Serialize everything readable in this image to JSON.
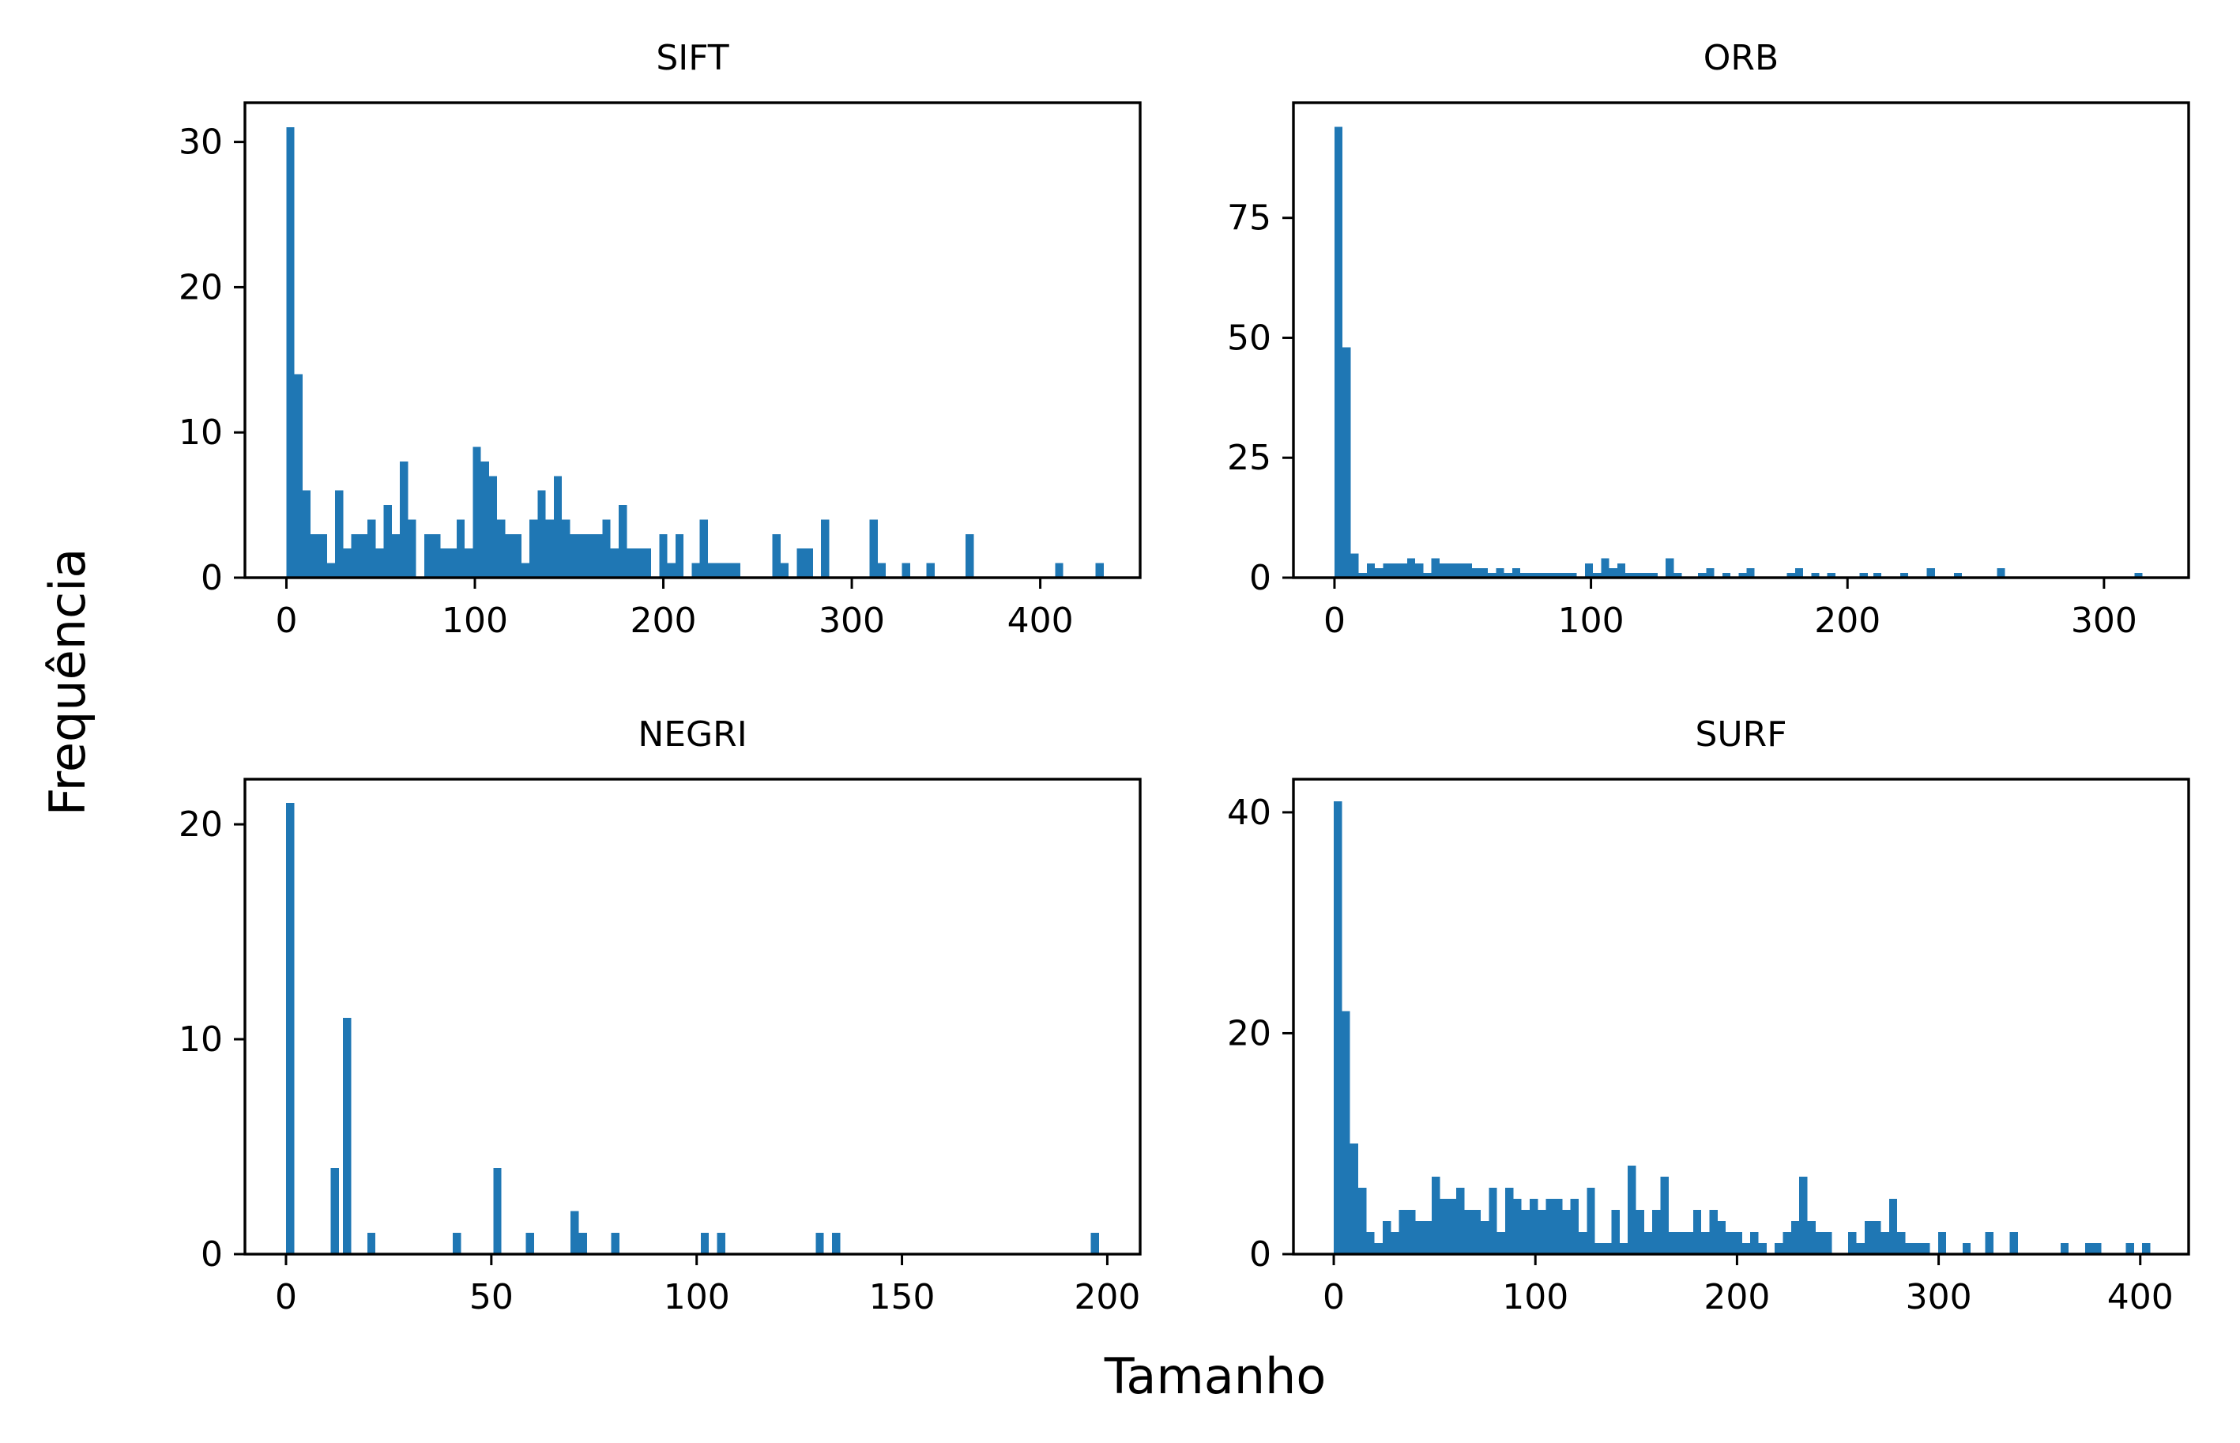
{
  "figure": {
    "xlabel": "Tamanho",
    "ylabel": "Frequência",
    "bar_color": "#1f77b4",
    "axis_color": "#000000"
  },
  "chart_data": [
    {
      "type": "bar",
      "title": "SIFT",
      "xlim": [
        -22,
        453
      ],
      "ylim": [
        0,
        32.7
      ],
      "xticks": [
        0,
        100,
        200,
        300,
        400
      ],
      "yticks": [
        0,
        10,
        20,
        30
      ],
      "bin_width": 4.3,
      "bins": [
        [
          0,
          31
        ],
        [
          4.3,
          14
        ],
        [
          8.6,
          6
        ],
        [
          12.9,
          3
        ],
        [
          17.2,
          3
        ],
        [
          21.5,
          1
        ],
        [
          25.8,
          6
        ],
        [
          30.1,
          2
        ],
        [
          34.4,
          3
        ],
        [
          38.7,
          3
        ],
        [
          43,
          4
        ],
        [
          47.3,
          2
        ],
        [
          51.6,
          5
        ],
        [
          55.9,
          3
        ],
        [
          60.2,
          8
        ],
        [
          64.5,
          4
        ],
        [
          73.1,
          3
        ],
        [
          77.4,
          3
        ],
        [
          81.7,
          2
        ],
        [
          86,
          2
        ],
        [
          90.3,
          4
        ],
        [
          94.6,
          2
        ],
        [
          98.9,
          9
        ],
        [
          103.2,
          8
        ],
        [
          107.5,
          7
        ],
        [
          111.8,
          4
        ],
        [
          116.1,
          3
        ],
        [
          120.4,
          3
        ],
        [
          124.7,
          1
        ],
        [
          129,
          4
        ],
        [
          133.3,
          6
        ],
        [
          137.6,
          4
        ],
        [
          141.9,
          7
        ],
        [
          146.2,
          4
        ],
        [
          150.5,
          3
        ],
        [
          154.8,
          3
        ],
        [
          159.1,
          3
        ],
        [
          163.4,
          3
        ],
        [
          167.7,
          4
        ],
        [
          172,
          2
        ],
        [
          176.3,
          5
        ],
        [
          180.6,
          2
        ],
        [
          184.9,
          2
        ],
        [
          189.2,
          2
        ],
        [
          197.8,
          3
        ],
        [
          202.1,
          1
        ],
        [
          206.4,
          3
        ],
        [
          215,
          1
        ],
        [
          219.3,
          4
        ],
        [
          223.6,
          1
        ],
        [
          227.9,
          1
        ],
        [
          232.2,
          1
        ],
        [
          236.5,
          1
        ],
        [
          257.9,
          3
        ],
        [
          262.2,
          1
        ],
        [
          270.8,
          2
        ],
        [
          275.1,
          2
        ],
        [
          283.7,
          4
        ],
        [
          309.5,
          4
        ],
        [
          313.8,
          1
        ],
        [
          326.7,
          1
        ],
        [
          339.6,
          1
        ],
        [
          360.4,
          3
        ],
        [
          407.9,
          1
        ],
        [
          429.4,
          1
        ]
      ]
    },
    {
      "type": "bar",
      "title": "ORB",
      "xlim": [
        -16,
        333
      ],
      "ylim": [
        0,
        99
      ],
      "xticks": [
        0,
        100,
        200,
        300
      ],
      "yticks": [
        0,
        25,
        50,
        75
      ],
      "bin_width": 3.15,
      "bins": [
        [
          0,
          94
        ],
        [
          3.15,
          48
        ],
        [
          6.3,
          5
        ],
        [
          9.45,
          1
        ],
        [
          12.6,
          3
        ],
        [
          15.75,
          2
        ],
        [
          18.9,
          3
        ],
        [
          22.05,
          3
        ],
        [
          25.2,
          3
        ],
        [
          28.35,
          4
        ],
        [
          31.5,
          3
        ],
        [
          34.65,
          1
        ],
        [
          37.8,
          4
        ],
        [
          40.95,
          3
        ],
        [
          44.1,
          3
        ],
        [
          47.25,
          3
        ],
        [
          50.4,
          3
        ],
        [
          53.55,
          2
        ],
        [
          56.7,
          2
        ],
        [
          59.85,
          1
        ],
        [
          63,
          2
        ],
        [
          66.15,
          1
        ],
        [
          69.3,
          2
        ],
        [
          72.45,
          1
        ],
        [
          75.6,
          1
        ],
        [
          78.75,
          1
        ],
        [
          81.9,
          1
        ],
        [
          85.05,
          1
        ],
        [
          88.2,
          1
        ],
        [
          91.35,
          1
        ],
        [
          97.65,
          3
        ],
        [
          100.8,
          1
        ],
        [
          103.95,
          4
        ],
        [
          107.1,
          2
        ],
        [
          110.25,
          3
        ],
        [
          113.4,
          1
        ],
        [
          116.55,
          1
        ],
        [
          119.7,
          1
        ],
        [
          122.85,
          1
        ],
        [
          129.15,
          4
        ],
        [
          132.3,
          1
        ],
        [
          141.75,
          1
        ],
        [
          144.9,
          2
        ],
        [
          151.2,
          1
        ],
        [
          157.5,
          1
        ],
        [
          160.65,
          2
        ],
        [
          176.4,
          1
        ],
        [
          179.55,
          2
        ],
        [
          185.85,
          1
        ],
        [
          192.15,
          1
        ],
        [
          204.75,
          1
        ],
        [
          210.05,
          1
        ],
        [
          220.5,
          1
        ],
        [
          230.95,
          2
        ],
        [
          241.5,
          1
        ],
        [
          258.3,
          2
        ],
        [
          311.85,
          1
        ]
      ]
    },
    {
      "type": "bar",
      "title": "NEGRI",
      "xlim": [
        -10,
        208
      ],
      "ylim": [
        0,
        22.1
      ],
      "xticks": [
        0,
        50,
        100,
        150,
        200
      ],
      "yticks": [
        0,
        10,
        20
      ],
      "bin_width": 1.98,
      "bins": [
        [
          0,
          21
        ],
        [
          10.9,
          4
        ],
        [
          13.9,
          11
        ],
        [
          19.8,
          1
        ],
        [
          40.6,
          1
        ],
        [
          50.5,
          4
        ],
        [
          58.4,
          1
        ],
        [
          69.3,
          2
        ],
        [
          71.3,
          1
        ],
        [
          79.2,
          1
        ],
        [
          101,
          1
        ],
        [
          105,
          1
        ],
        [
          129,
          1
        ],
        [
          133,
          1
        ],
        [
          196,
          1
        ]
      ]
    },
    {
      "type": "bar",
      "title": "SURF",
      "xlim": [
        -20,
        424
      ],
      "ylim": [
        0,
        43
      ],
      "xticks": [
        0,
        100,
        200,
        300,
        400
      ],
      "yticks": [
        0,
        20,
        40
      ],
      "bin_width": 4.05,
      "bins": [
        [
          0,
          41
        ],
        [
          4.05,
          22
        ],
        [
          8.1,
          10
        ],
        [
          12.15,
          6
        ],
        [
          16.2,
          2
        ],
        [
          20.25,
          1
        ],
        [
          24.3,
          3
        ],
        [
          28.35,
          2
        ],
        [
          32.4,
          4
        ],
        [
          36.45,
          4
        ],
        [
          40.5,
          3
        ],
        [
          44.55,
          3
        ],
        [
          48.6,
          7
        ],
        [
          52.65,
          5
        ],
        [
          56.7,
          5
        ],
        [
          60.75,
          6
        ],
        [
          64.8,
          4
        ],
        [
          68.85,
          4
        ],
        [
          72.9,
          3
        ],
        [
          76.95,
          6
        ],
        [
          81,
          2
        ],
        [
          85.05,
          6
        ],
        [
          89.1,
          5
        ],
        [
          93.15,
          4
        ],
        [
          97.2,
          5
        ],
        [
          101.25,
          4
        ],
        [
          105.3,
          5
        ],
        [
          109.35,
          5
        ],
        [
          113.4,
          4
        ],
        [
          117.45,
          5
        ],
        [
          121.5,
          2
        ],
        [
          125.55,
          6
        ],
        [
          129.6,
          1
        ],
        [
          133.65,
          1
        ],
        [
          137.7,
          4
        ],
        [
          141.75,
          1
        ],
        [
          145.8,
          8
        ],
        [
          149.85,
          4
        ],
        [
          153.9,
          2
        ],
        [
          157.95,
          4
        ],
        [
          162,
          7
        ],
        [
          166.05,
          2
        ],
        [
          170.1,
          2
        ],
        [
          174.15,
          2
        ],
        [
          178.2,
          4
        ],
        [
          182.25,
          2
        ],
        [
          186.3,
          4
        ],
        [
          190.35,
          3
        ],
        [
          194.4,
          2
        ],
        [
          198.45,
          2
        ],
        [
          202.5,
          1
        ],
        [
          206.55,
          2
        ],
        [
          210.6,
          1
        ],
        [
          218.7,
          1
        ],
        [
          222.75,
          2
        ],
        [
          226.8,
          3
        ],
        [
          230.85,
          7
        ],
        [
          234.9,
          3
        ],
        [
          238.95,
          2
        ],
        [
          243,
          2
        ],
        [
          255.15,
          2
        ],
        [
          259.2,
          1
        ],
        [
          263.25,
          3
        ],
        [
          267.3,
          3
        ],
        [
          271.35,
          2
        ],
        [
          275.4,
          5
        ],
        [
          279.45,
          2
        ],
        [
          283.5,
          1
        ],
        [
          287.55,
          1
        ],
        [
          291.6,
          1
        ],
        [
          299.7,
          2
        ],
        [
          311.85,
          1
        ],
        [
          323.1,
          2
        ],
        [
          335.25,
          2
        ],
        [
          360.45,
          1
        ],
        [
          372.6,
          1
        ],
        [
          376.65,
          1
        ],
        [
          392.85,
          1
        ],
        [
          400.95,
          1
        ]
      ]
    }
  ]
}
